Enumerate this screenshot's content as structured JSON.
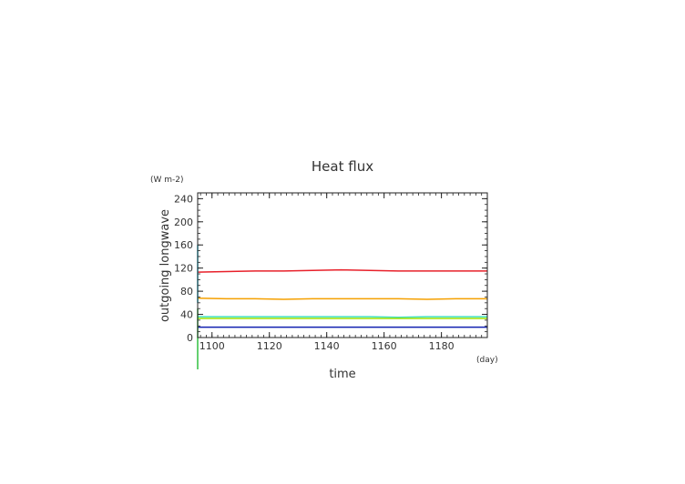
{
  "chart_data": {
    "type": "line",
    "title": "Heat flux",
    "xlabel": "time",
    "ylabel": "outgoing longwave",
    "x_unit": "(day)",
    "y_unit": "(W m-2)",
    "xlim": [
      1095,
      1196
    ],
    "ylim": [
      0,
      250
    ],
    "x_ticks": [
      "1100",
      "1120",
      "1140",
      "1160",
      "1180"
    ],
    "y_ticks": [
      "0",
      "40",
      "80",
      "120",
      "160",
      "200",
      "240"
    ],
    "grid": false,
    "series": [
      {
        "color": "#e8202a",
        "x": [
          1095,
          1105,
          1115,
          1125,
          1135,
          1145,
          1155,
          1165,
          1175,
          1185,
          1196
        ],
        "values": [
          113,
          114,
          115,
          115,
          116,
          117,
          116,
          115,
          115,
          115,
          115
        ]
      },
      {
        "color": "#f5a000",
        "x": [
          1095,
          1105,
          1115,
          1125,
          1135,
          1145,
          1155,
          1165,
          1175,
          1185,
          1196
        ],
        "values": [
          68,
          67,
          67,
          66,
          67,
          67,
          67,
          67,
          66,
          67,
          67
        ]
      },
      {
        "color": "#40e0c0",
        "x": [
          1095,
          1105,
          1115,
          1125,
          1135,
          1145,
          1155,
          1165,
          1175,
          1185,
          1196
        ],
        "values": [
          36,
          36,
          36,
          36,
          36,
          36,
          36,
          35,
          36,
          36,
          36
        ]
      },
      {
        "color": "#a0e000",
        "x": [
          1095,
          1105,
          1115,
          1125,
          1135,
          1145,
          1155,
          1165,
          1175,
          1185,
          1196
        ],
        "values": [
          33,
          33,
          33,
          33,
          33,
          33,
          33,
          33,
          33,
          33,
          33
        ]
      },
      {
        "color": "#1020b0",
        "x": [
          1095,
          1105,
          1115,
          1125,
          1135,
          1145,
          1155,
          1165,
          1175,
          1185,
          1196
        ],
        "values": [
          18,
          18,
          18,
          18,
          18,
          18,
          18,
          18,
          18,
          18,
          18
        ]
      },
      {
        "color": "#20d0f0",
        "x": [
          1095,
          1095,
          1095
        ],
        "values": [
          160,
          140,
          60
        ]
      },
      {
        "color": "#30c040",
        "x": [
          1095,
          1095
        ],
        "values": [
          50,
          -55
        ]
      }
    ]
  }
}
